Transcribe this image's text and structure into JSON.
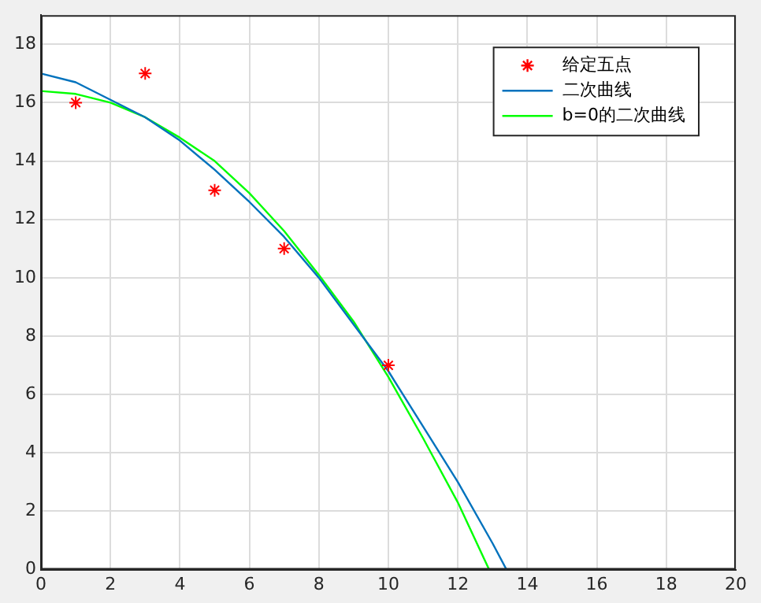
{
  "chart_data": {
    "type": "line",
    "xlim": [
      0,
      20
    ],
    "xticks": [
      0,
      2,
      4,
      6,
      8,
      10,
      12,
      14,
      16,
      18,
      20
    ],
    "ylim": [
      0,
      19
    ],
    "yticks": [
      0,
      2,
      4,
      6,
      8,
      10,
      12,
      14,
      16,
      18
    ],
    "grid": true,
    "legend": "top right",
    "series": [
      {
        "name": "给定五点",
        "type": "scatter",
        "marker": "cross",
        "color": "#ff0000",
        "x": [
          1,
          3,
          5,
          7,
          10
        ],
        "values": [
          16,
          17,
          13,
          11,
          7
        ]
      },
      {
        "name": "二次曲线",
        "marker": "none",
        "color": "#0072bd",
        "x": [
          0,
          1,
          2,
          3,
          4,
          5,
          6,
          7,
          8,
          9,
          10,
          11,
          12,
          13,
          13.4
        ],
        "values": [
          17.0,
          16.7,
          16.1,
          15.5,
          14.7,
          13.7,
          12.6,
          11.4,
          10.0,
          8.4,
          6.8,
          4.9,
          3.0,
          0.9,
          0
        ]
      },
      {
        "name": "b=0的二次曲线",
        "marker": "none",
        "color": "#00ff00",
        "x": [
          0,
          1,
          2,
          3,
          4,
          5,
          6,
          7,
          8,
          9,
          10,
          11,
          12,
          12.9
        ],
        "values": [
          16.4,
          16.3,
          16.0,
          15.5,
          14.8,
          14.0,
          12.9,
          11.6,
          10.1,
          8.5,
          6.6,
          4.5,
          2.3,
          0
        ]
      }
    ]
  }
}
